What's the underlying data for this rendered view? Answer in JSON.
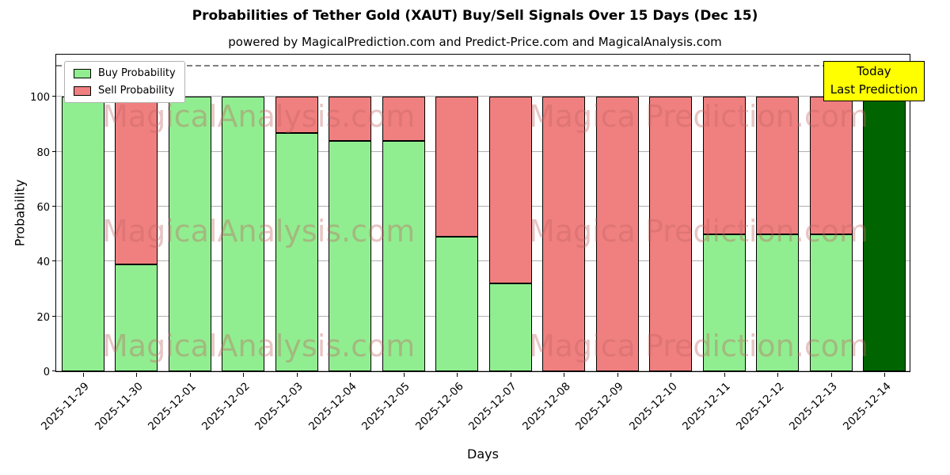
{
  "watermark": {
    "left_text": "MagicalAnalysis.com",
    "right_text": "Magica Prediction.com"
  },
  "annotation": {
    "line1": "Today",
    "line2": "Last Prediction",
    "bg_color": "#ffff00"
  },
  "chart_data": {
    "type": "bar",
    "stacked": true,
    "title": "Probabilities of Tether Gold (XAUT) Buy/Sell Signals Over 15 Days (Dec 15)",
    "subtitle": "powered by MagicalPrediction.com and Predict-Price.com and MagicalAnalysis.com",
    "xlabel": "Days",
    "ylabel": "Probability",
    "ylim": [
      0,
      116
    ],
    "yticks": [
      0,
      20,
      40,
      60,
      80,
      100
    ],
    "dashed_guideline_y": 111,
    "grid": "horizontal",
    "legend_position": "upper-left",
    "categories": [
      "2025-11-29",
      "2025-11-30",
      "2025-12-01",
      "2025-12-02",
      "2025-12-03",
      "2025-12-04",
      "2025-12-05",
      "2025-12-06",
      "2025-12-07",
      "2025-12-08",
      "2025-12-09",
      "2025-12-10",
      "2025-12-11",
      "2025-12-12",
      "2025-12-13",
      "2025-12-14"
    ],
    "series": [
      {
        "name": "Buy Probability",
        "color": "#90ee90",
        "values": [
          100,
          39,
          100,
          100,
          87,
          84,
          84,
          49,
          32,
          0,
          0,
          0,
          50,
          50,
          50,
          100
        ]
      },
      {
        "name": "Sell Probability",
        "color": "#f08080",
        "values": [
          0,
          61,
          0,
          0,
          13,
          16,
          16,
          51,
          68,
          100,
          100,
          100,
          50,
          50,
          50,
          0
        ]
      }
    ],
    "final_bar_buy_color": "#006400"
  }
}
